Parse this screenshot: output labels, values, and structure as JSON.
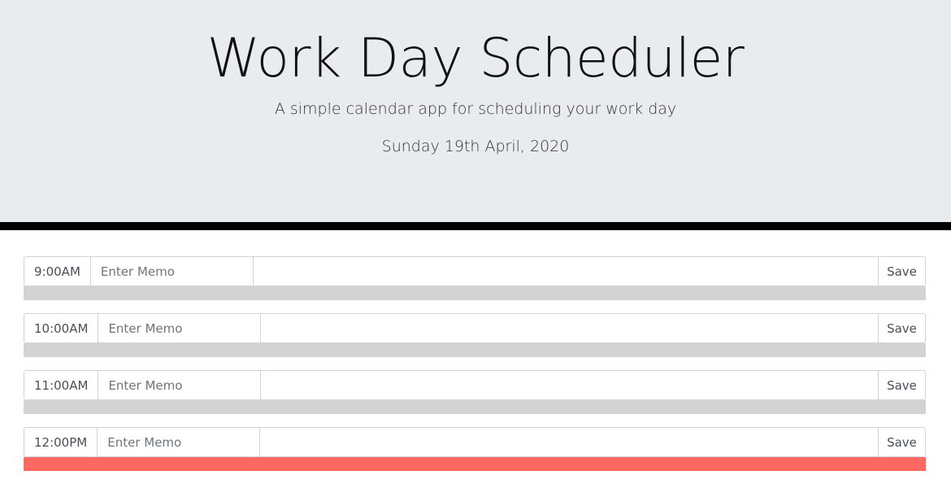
{
  "header": {
    "title": "Work Day Scheduler",
    "subtitle": "A simple calendar app for scheduling your work day",
    "date": "Sunday 19th April, 2020"
  },
  "rows": [
    {
      "hour": "9:00AM",
      "memo_placeholder": "Enter Memo",
      "memo_value": "",
      "save_label": "Save",
      "status": "past"
    },
    {
      "hour": "10:00AM",
      "memo_placeholder": "Enter Memo",
      "memo_value": "",
      "save_label": "Save",
      "status": "past"
    },
    {
      "hour": "11:00AM",
      "memo_placeholder": "Enter Memo",
      "memo_value": "",
      "save_label": "Save",
      "status": "past"
    },
    {
      "hour": "12:00PM",
      "memo_placeholder": "Enter Memo",
      "memo_value": "",
      "save_label": "Save",
      "status": "present"
    }
  ],
  "colors": {
    "header_bg": "#e9ecef",
    "past": "#d3d3d3",
    "present": "#ff6961",
    "divider": "#000000"
  }
}
